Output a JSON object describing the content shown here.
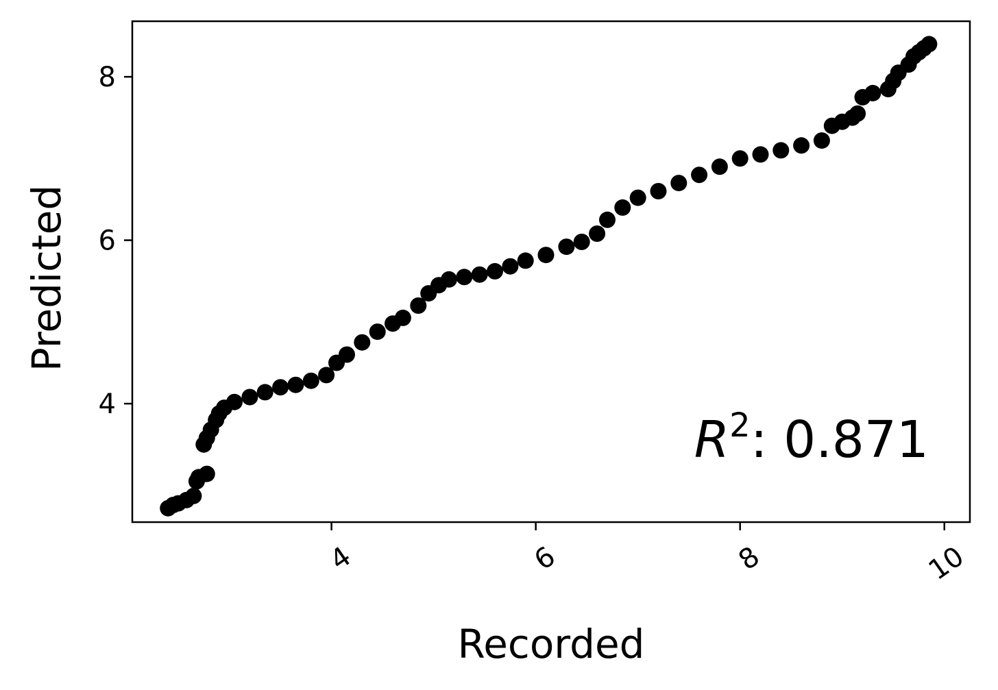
{
  "chart_data": {
    "type": "scatter",
    "xlabel": "Recorded",
    "ylabel": "Predicted",
    "annotation": {
      "prefix": "R",
      "superscript": "2",
      "text": ": 0.871"
    },
    "xlim": [
      2.05,
      10.25
    ],
    "ylim": [
      2.55,
      8.68
    ],
    "x_ticks": [
      {
        "value": 4,
        "label": "4"
      },
      {
        "value": 6,
        "label": "6"
      },
      {
        "value": 8,
        "label": "8"
      },
      {
        "value": 10,
        "label": "10"
      }
    ],
    "y_ticks": [
      {
        "value": 4,
        "label": "4"
      },
      {
        "value": 6,
        "label": "6"
      },
      {
        "value": 8,
        "label": "8"
      }
    ],
    "grid": false,
    "marker_color": "#000000",
    "series": [
      {
        "x": [
          2.4,
          2.45,
          2.5,
          2.58,
          2.65,
          2.68,
          2.7,
          2.78,
          2.75,
          2.78,
          2.82,
          2.87,
          2.9,
          2.95,
          3.05,
          3.2,
          3.35,
          3.5,
          3.65,
          3.8,
          3.95,
          4.05,
          4.15,
          4.3,
          4.45,
          4.6,
          4.7,
          4.85,
          4.95,
          5.05,
          5.15,
          5.3,
          5.45,
          5.6,
          5.75,
          5.9,
          6.1,
          6.3,
          6.45,
          6.6,
          6.7,
          6.85,
          7.0,
          7.2,
          7.4,
          7.6,
          7.8,
          8.0,
          8.2,
          8.4,
          8.6,
          8.8,
          8.9,
          9.0,
          9.1,
          9.15,
          9.2,
          9.3,
          9.45,
          9.5,
          9.55,
          9.65,
          9.7,
          9.75,
          9.8,
          9.85
        ],
        "y": [
          2.72,
          2.76,
          2.78,
          2.82,
          2.87,
          3.05,
          3.1,
          3.14,
          3.5,
          3.58,
          3.68,
          3.8,
          3.88,
          3.95,
          4.02,
          4.08,
          4.14,
          4.2,
          4.23,
          4.28,
          4.35,
          4.5,
          4.6,
          4.75,
          4.88,
          4.98,
          5.05,
          5.2,
          5.35,
          5.45,
          5.52,
          5.55,
          5.58,
          5.62,
          5.68,
          5.75,
          5.82,
          5.92,
          5.98,
          6.08,
          6.25,
          6.4,
          6.52,
          6.6,
          6.7,
          6.8,
          6.9,
          7.0,
          7.05,
          7.1,
          7.16,
          7.22,
          7.4,
          7.45,
          7.5,
          7.55,
          7.75,
          7.8,
          7.85,
          7.95,
          8.05,
          8.15,
          8.25,
          8.3,
          8.35,
          8.4
        ]
      }
    ]
  }
}
